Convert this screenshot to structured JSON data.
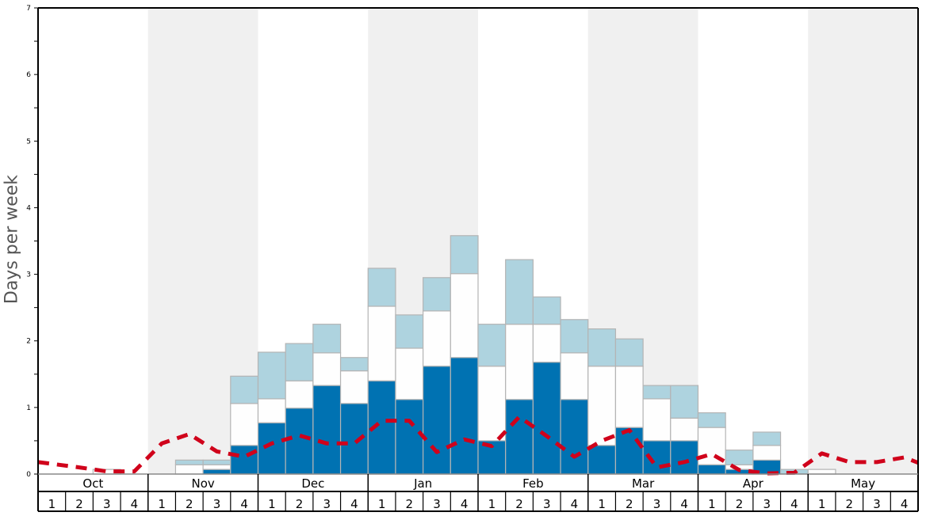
{
  "chart_data": {
    "type": "bar",
    "stacked": true,
    "title": "",
    "xlabel": "",
    "ylabel": "Days per week",
    "ylim": [
      0,
      7
    ],
    "yticks": [
      0,
      1,
      2,
      3,
      4,
      5,
      6,
      7
    ],
    "months": [
      "Oct",
      "Nov",
      "Dec",
      "Jan",
      "Feb",
      "Mar",
      "Apr",
      "May"
    ],
    "weeks": [
      "1",
      "2",
      "3",
      "4"
    ],
    "categories": [
      "Oct 1",
      "Oct 2",
      "Oct 3",
      "Oct 4",
      "Nov 1",
      "Nov 2",
      "Nov 3",
      "Nov 4",
      "Dec 1",
      "Dec 2",
      "Dec 3",
      "Dec 4",
      "Jan 1",
      "Jan 2",
      "Jan 3",
      "Jan 4",
      "Feb 1",
      "Feb 2",
      "Feb 3",
      "Feb 4",
      "Mar 1",
      "Mar 2",
      "Mar 3",
      "Mar 4",
      "Apr 1",
      "Apr 2",
      "Apr 3",
      "Apr 4",
      "May 1",
      "May 2",
      "May 3",
      "May 4"
    ],
    "series": [
      {
        "name": "dark",
        "color": "#0072b2",
        "values": [
          0,
          0,
          0,
          0,
          0,
          0,
          0.07,
          0.43,
          0.77,
          0.99,
          1.33,
          1.06,
          1.4,
          1.12,
          1.62,
          1.75,
          0.5,
          1.12,
          1.68,
          1.12,
          0.43,
          0.7,
          0.5,
          0.5,
          0.14,
          0.07,
          0.21,
          0,
          0,
          0,
          0,
          0
        ]
      },
      {
        "name": "white",
        "color": "#fefefe",
        "values": [
          0,
          0,
          0.07,
          0,
          0,
          0.14,
          0.07,
          0.63,
          0.36,
          0.41,
          0.49,
          0.49,
          1.12,
          0.77,
          0.83,
          1.26,
          1.12,
          1.13,
          0.57,
          0.7,
          1.19,
          0.92,
          0.63,
          0.34,
          0.56,
          0.07,
          0.22,
          0,
          0.07,
          0,
          0,
          0
        ]
      },
      {
        "name": "light",
        "color": "#aed3df",
        "values": [
          0,
          0,
          0,
          0,
          0,
          0.07,
          0.07,
          0.41,
          0.7,
          0.56,
          0.43,
          0.2,
          0.57,
          0.5,
          0.5,
          0.57,
          0.63,
          0.97,
          0.41,
          0.5,
          0.56,
          0.41,
          0.2,
          0.49,
          0.22,
          0.22,
          0.2,
          0.07,
          0,
          0,
          0,
          0
        ]
      }
    ],
    "line": {
      "name": "average",
      "style": "dashed",
      "color": "#d0021b",
      "values": [
        0.18,
        0.1,
        0.04,
        0.04,
        0.46,
        0.6,
        0.34,
        0.26,
        0.46,
        0.58,
        0.46,
        0.46,
        0.8,
        0.8,
        0.33,
        0.52,
        0.42,
        0.86,
        0.57,
        0.26,
        0.5,
        0.66,
        0.1,
        0.18,
        0.3,
        0.06,
        0.01,
        0.02,
        0.31,
        0.18,
        0.18,
        0.25
      ]
    },
    "month_shading": [
      "#ffffff",
      "#f0f0f0",
      "#ffffff",
      "#f0f0f0",
      "#ffffff",
      "#f0f0f0",
      "#ffffff",
      "#f0f0f0"
    ],
    "grid": false,
    "legend": null
  }
}
